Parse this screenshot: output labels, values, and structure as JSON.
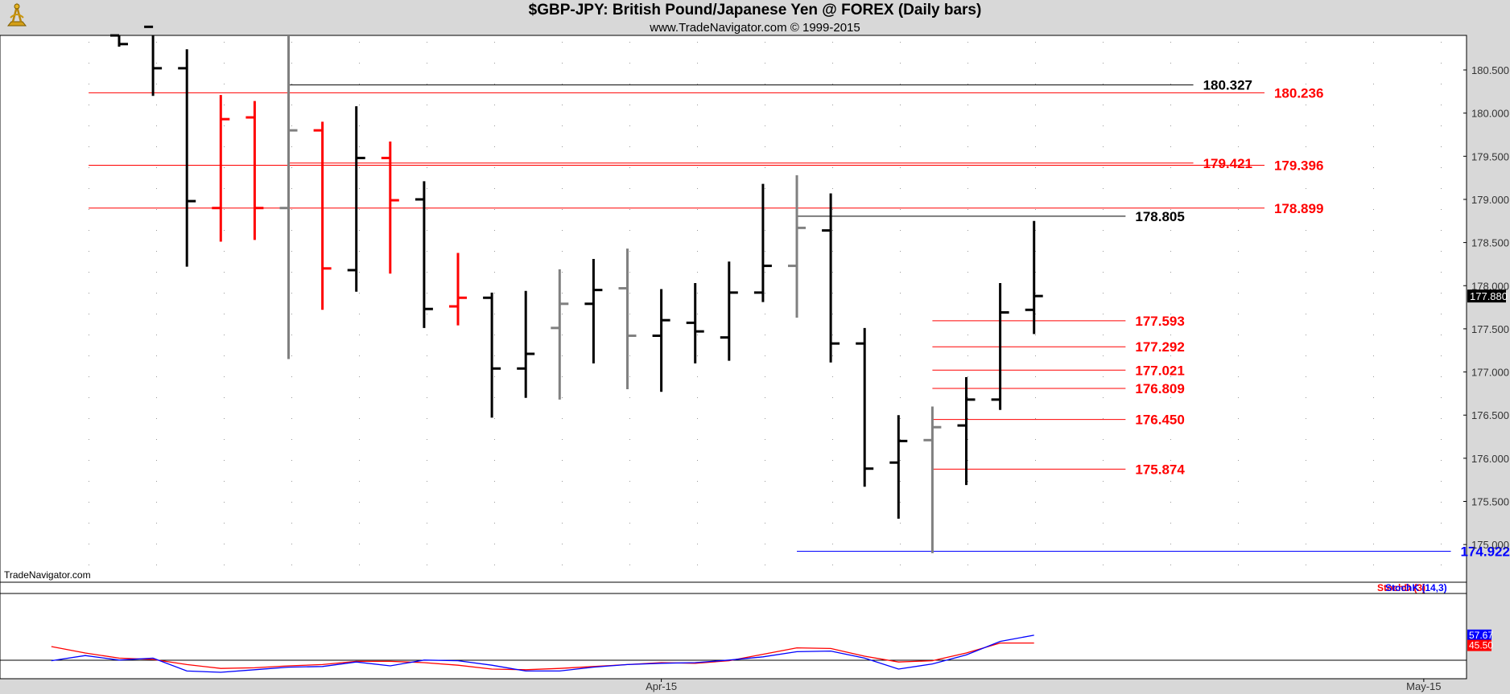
{
  "header": {
    "title": "$GBP-JPY:  British Pound/Japanese Yen @ FOREX  (Daily bars)",
    "copyright": "www.TradeNavigator.com © 1999-2015"
  },
  "watermark": "TradeNavigator.com",
  "colors": {
    "up": "#000000",
    "down": "#ff0000",
    "neutral": "#808080",
    "stochD": "#ff0000",
    "stochK": "#0000ff",
    "support": "#0000ff"
  },
  "chart_data": [
    {
      "type": "ohlc",
      "title": "$GBP-JPY:  British Pound/Japanese Yen @ FOREX  (Daily bars)",
      "ylim": [
        174.5,
        180.85
      ],
      "y_ticks": [
        "175.000",
        "175.500",
        "176.000",
        "176.500",
        "177.000",
        "177.500",
        "178.000",
        "178.500",
        "179.000",
        "179.500",
        "180.000",
        "180.500"
      ],
      "x_ticks": [
        {
          "index": 16,
          "label": "Apr-15"
        },
        {
          "index": 38.5,
          "label": "May-15"
        }
      ],
      "last_price": "177.880",
      "bars": [
        {
          "o": 180.9,
          "h": 180.9,
          "l": 180.77,
          "c": 180.8,
          "color": "up"
        },
        {
          "o": 181.0,
          "h": 181.0,
          "l": 180.2,
          "c": 180.52,
          "color": "up"
        },
        {
          "o": 180.52,
          "h": 180.74,
          "l": 178.22,
          "c": 178.98,
          "color": "up"
        },
        {
          "o": 178.9,
          "h": 180.21,
          "l": 178.51,
          "c": 179.93,
          "color": "down"
        },
        {
          "o": 179.95,
          "h": 180.14,
          "l": 178.53,
          "c": 178.9,
          "color": "down"
        },
        {
          "o": 178.9,
          "h": 181.0,
          "l": 177.15,
          "c": 179.8,
          "color": "neutral"
        },
        {
          "o": 179.8,
          "h": 179.9,
          "l": 177.72,
          "c": 178.2,
          "color": "down"
        },
        {
          "o": 178.18,
          "h": 180.08,
          "l": 177.93,
          "c": 179.48,
          "color": "up"
        },
        {
          "o": 179.48,
          "h": 179.67,
          "l": 178.14,
          "c": 178.99,
          "color": "down"
        },
        {
          "o": 179.0,
          "h": 179.21,
          "l": 177.51,
          "c": 177.73,
          "color": "up"
        },
        {
          "o": 177.76,
          "h": 178.38,
          "l": 177.54,
          "c": 177.86,
          "color": "down"
        },
        {
          "o": 177.86,
          "h": 177.92,
          "l": 176.47,
          "c": 177.04,
          "color": "up"
        },
        {
          "o": 177.04,
          "h": 177.94,
          "l": 176.7,
          "c": 177.21,
          "color": "up"
        },
        {
          "o": 177.51,
          "h": 178.19,
          "l": 176.68,
          "c": 177.79,
          "color": "neutral"
        },
        {
          "o": 177.79,
          "h": 178.31,
          "l": 177.1,
          "c": 177.95,
          "color": "up"
        },
        {
          "o": 177.97,
          "h": 178.43,
          "l": 176.8,
          "c": 177.42,
          "color": "neutral"
        },
        {
          "o": 177.42,
          "h": 177.96,
          "l": 176.77,
          "c": 177.6,
          "color": "up"
        },
        {
          "o": 177.57,
          "h": 178.03,
          "l": 177.1,
          "c": 177.47,
          "color": "up"
        },
        {
          "o": 177.4,
          "h": 178.28,
          "l": 177.13,
          "c": 177.92,
          "color": "up"
        },
        {
          "o": 177.92,
          "h": 179.18,
          "l": 177.81,
          "c": 178.23,
          "color": "up"
        },
        {
          "o": 178.23,
          "h": 179.28,
          "l": 177.63,
          "c": 178.67,
          "color": "neutral"
        },
        {
          "o": 178.64,
          "h": 179.07,
          "l": 177.11,
          "c": 177.33,
          "color": "up"
        },
        {
          "o": 177.33,
          "h": 177.51,
          "l": 175.67,
          "c": 175.88,
          "color": "up"
        },
        {
          "o": 175.95,
          "h": 176.5,
          "l": 175.3,
          "c": 176.2,
          "color": "up"
        },
        {
          "o": 176.21,
          "h": 176.6,
          "l": 174.9,
          "c": 176.36,
          "color": "neutral"
        },
        {
          "o": 176.38,
          "h": 176.94,
          "l": 175.69,
          "c": 176.68,
          "color": "up"
        },
        {
          "o": 176.68,
          "h": 178.03,
          "l": 176.56,
          "c": 177.69,
          "color": "up"
        },
        {
          "o": 177.72,
          "h": 178.75,
          "l": 177.44,
          "c": 177.88,
          "color": "up"
        }
      ],
      "levels": [
        {
          "value": "180.327",
          "color": "#000000",
          "start_bar": 5,
          "end_bar": 31.7
        },
        {
          "value": "180.236",
          "color": "#ff0000",
          "start_bar": -0.9,
          "end_bar": 33.8
        },
        {
          "value": "179.421",
          "color": "#ff0000",
          "start_bar": 5,
          "end_bar": 31.7
        },
        {
          "value": "179.396",
          "color": "#ff0000",
          "start_bar": -0.9,
          "end_bar": 33.8
        },
        {
          "value": "178.899",
          "color": "#ff0000",
          "start_bar": -0.9,
          "end_bar": 33.8
        },
        {
          "value": "178.805",
          "color": "#000000",
          "start_bar": 20,
          "end_bar": 29.7
        },
        {
          "value": "177.593",
          "color": "#ff0000",
          "start_bar": 24,
          "end_bar": 29.7
        },
        {
          "value": "177.292",
          "color": "#ff0000",
          "start_bar": 24,
          "end_bar": 29.7
        },
        {
          "value": "177.021",
          "color": "#ff0000",
          "start_bar": 24,
          "end_bar": 29.7
        },
        {
          "value": "176.809",
          "color": "#ff0000",
          "start_bar": 24,
          "end_bar": 29.7
        },
        {
          "value": "176.450",
          "color": "#ff0000",
          "start_bar": 24,
          "end_bar": 29.7
        },
        {
          "value": "175.874",
          "color": "#ff0000",
          "start_bar": 24,
          "end_bar": 29.7
        },
        {
          "value": "174.922",
          "color": "#0000ff",
          "start_bar": 20,
          "end_bar": 39.3
        }
      ]
    },
    {
      "type": "line",
      "legend": [
        "StochD (3)",
        "StochK (14,3)"
      ],
      "ylim": [
        0,
        100
      ],
      "last_values": {
        "StochD": "45.50",
        "StochK": "57.67"
      },
      "series": [
        {
          "name": "StochD (3)",
          "color": "#ff0000",
          "x": [
            -2,
            -1,
            0,
            1,
            2,
            3,
            4,
            5,
            6,
            7,
            8,
            9,
            10,
            11,
            12,
            13,
            14,
            15,
            16,
            17,
            18,
            19,
            20,
            21,
            22,
            23,
            24,
            25,
            26,
            27
          ],
          "values": [
            40,
            30,
            22,
            20,
            12,
            6,
            7,
            10,
            12,
            17,
            17,
            15,
            11,
            5,
            4,
            6,
            9,
            12,
            15,
            14,
            18,
            28,
            38,
            37,
            25,
            16,
            18,
            30,
            45.5,
            45.5
          ]
        },
        {
          "name": "StochK (14,3)",
          "color": "#0000ff",
          "x": [
            -2,
            -1,
            0,
            1,
            2,
            3,
            4,
            5,
            6,
            7,
            8,
            9,
            10,
            11,
            12,
            13,
            14,
            15,
            16,
            17,
            18,
            19,
            20,
            21,
            22,
            23,
            24,
            25,
            26,
            27
          ],
          "values": [
            18,
            26,
            19,
            22,
            2,
            0,
            4,
            8,
            9,
            16,
            10,
            19,
            18,
            11,
            2,
            2,
            8,
            12,
            14,
            15,
            19,
            24,
            32,
            33,
            22,
            5,
            13,
            27,
            48,
            57.67
          ]
        }
      ]
    }
  ]
}
